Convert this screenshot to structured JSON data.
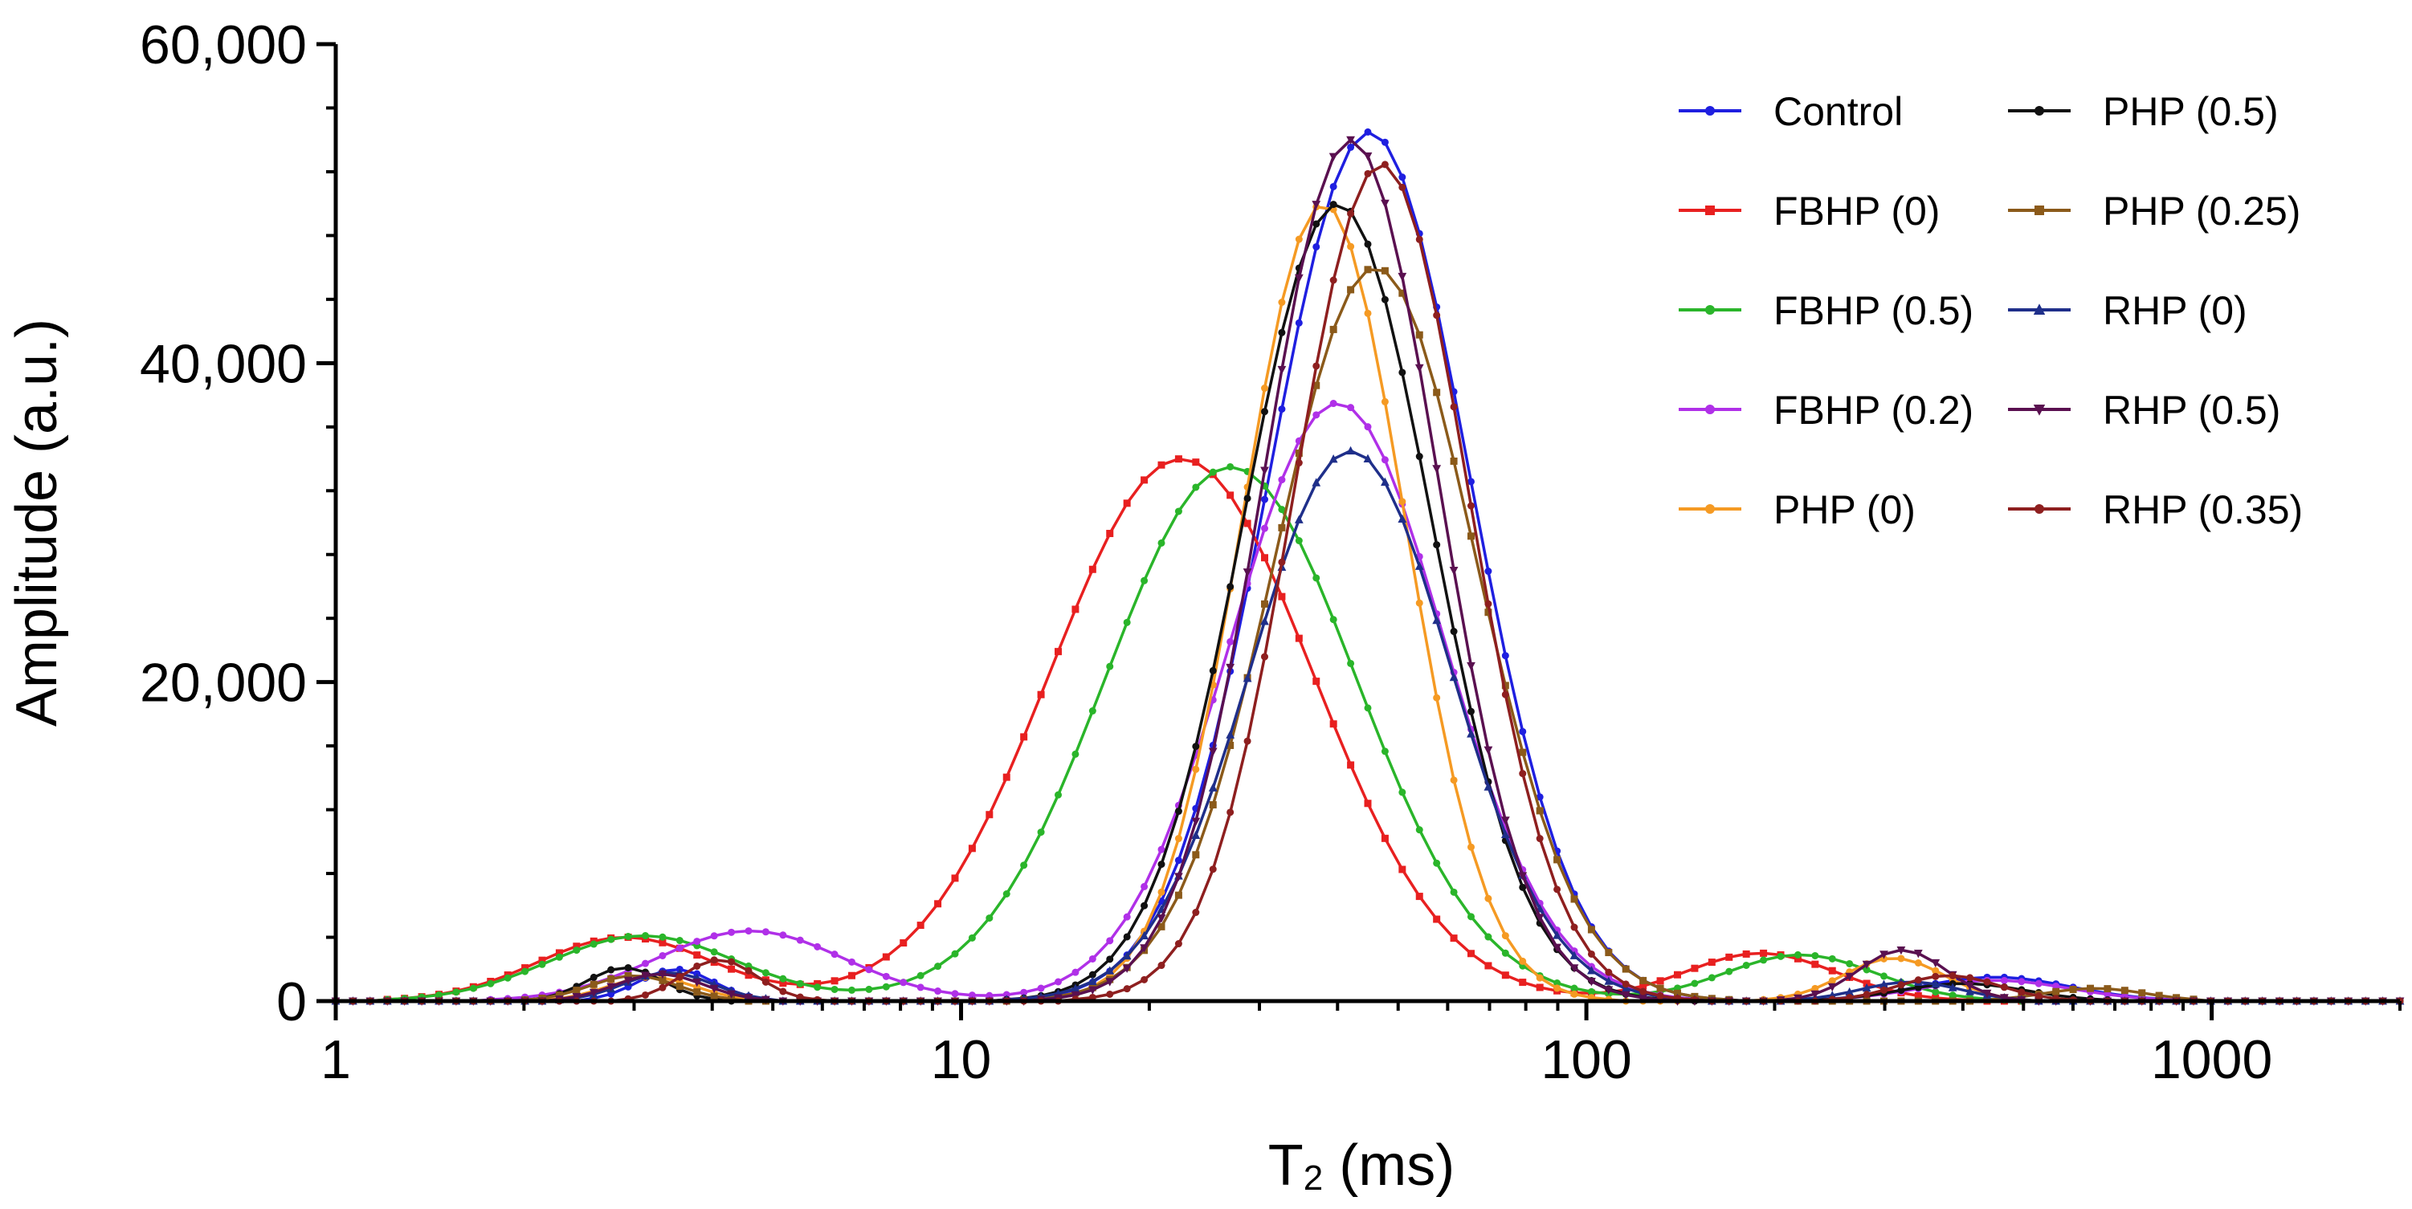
{
  "chart_data": {
    "type": "line",
    "title": "",
    "xlabel": "T",
    "xlabel_subscript": "2",
    "xlabel_unit": " (ms)",
    "ylabel": "Amplitude (a.u.)",
    "xscale": "log",
    "xlim": [
      1,
      2000
    ],
    "ylim": [
      0,
      60000
    ],
    "xticks": [
      1,
      10,
      100,
      1000
    ],
    "xtick_labels": [
      "1",
      "10",
      "100",
      "1000"
    ],
    "yticks": [
      0,
      20000,
      40000,
      60000
    ],
    "ytick_labels": [
      "0",
      "20,000",
      "40,000",
      "60,000"
    ],
    "grid": false,
    "legend_position": "top-right",
    "series": [
      {
        "name": "Control",
        "color": "#1f1fe0",
        "marker": "dot",
        "peaks": [
          [
            3.5,
            2000,
            0.06
          ],
          [
            45,
            54500,
            0.16
          ],
          [
            450,
            1500,
            0.12
          ]
        ]
      },
      {
        "name": "FBHP (0)",
        "color": "#e82020",
        "marker": "square",
        "peaks": [
          [
            2.9,
            4000,
            0.14
          ],
          [
            22.5,
            34000,
            0.21
          ],
          [
            190,
            3000,
            0.12
          ]
        ]
      },
      {
        "name": "FBHP (0.5)",
        "color": "#2ab52a",
        "marker": "dot",
        "peaks": [
          [
            3.1,
            4100,
            0.15
          ],
          [
            27,
            33500,
            0.2
          ],
          [
            220,
            2900,
            0.12
          ]
        ]
      },
      {
        "name": "FBHP (0.2)",
        "color": "#b030e8",
        "marker": "dot",
        "peaks": [
          [
            4.6,
            4400,
            0.15
          ],
          [
            40,
            37500,
            0.17
          ],
          [
            450,
            1300,
            0.12
          ]
        ]
      },
      {
        "name": "PHP (0)",
        "color": "#f59a23",
        "marker": "dot",
        "peaks": [
          [
            3.2,
            1500,
            0.07
          ],
          [
            38,
            50000,
            0.13
          ],
          [
            310,
            2700,
            0.08
          ]
        ]
      },
      {
        "name": "PHP (0.5)",
        "color": "#111111",
        "marker": "dot",
        "peaks": [
          [
            2.9,
            2100,
            0.06
          ],
          [
            40,
            50000,
            0.15
          ],
          [
            400,
            1100,
            0.1
          ]
        ]
      },
      {
        "name": "PHP (0.25)",
        "color": "#8b5a1a",
        "marker": "square",
        "peaks": [
          [
            3.0,
            1600,
            0.07
          ],
          [
            46,
            46000,
            0.16
          ],
          [
            650,
            800,
            0.08
          ]
        ]
      },
      {
        "name": "RHP (0)",
        "color": "#1f2f8a",
        "marker": "triangle",
        "peaks": [
          [
            3.4,
            1800,
            0.07
          ],
          [
            42,
            34500,
            0.16
          ],
          [
            330,
            1200,
            0.08
          ]
        ]
      },
      {
        "name": "RHP (0.5)",
        "color": "#5a1050",
        "marker": "triangle-down",
        "peaks": [
          [
            3.3,
            1700,
            0.07
          ],
          [
            42,
            54000,
            0.14
          ],
          [
            320,
            3200,
            0.07
          ]
        ]
      },
      {
        "name": "RHP (0.35)",
        "color": "#8e1f1f",
        "marker": "dot",
        "peaks": [
          [
            4.1,
            2600,
            0.06
          ],
          [
            47,
            52500,
            0.14
          ],
          [
            380,
            1600,
            0.08
          ]
        ]
      }
    ]
  }
}
